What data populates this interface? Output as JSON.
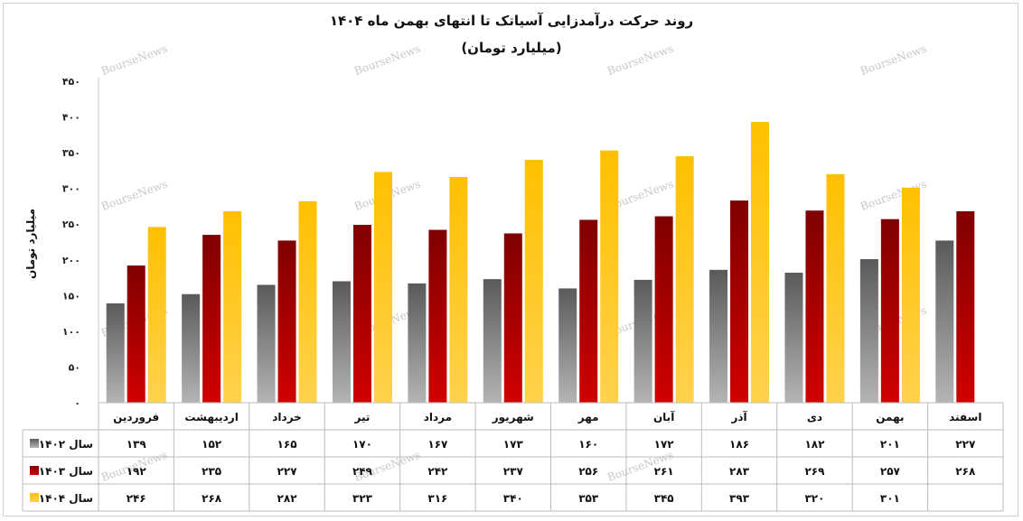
{
  "chart_data": {
    "type": "bar",
    "title": "روند حرکت درآمدزایی آسیاتک تا انتهای بهمن ماه ۱۴۰۴",
    "subtitle": "(میلیارد تومان)",
    "ylabel": "میلیارد تومان",
    "xlabel": "",
    "ylim": [
      0,
      450
    ],
    "yticks": [
      0,
      50,
      100,
      150,
      200,
      250,
      300,
      350,
      400,
      450
    ],
    "ytick_labels": [
      "۰",
      "۵۰",
      "۱۰۰",
      "۱۵۰",
      "۲۰۰",
      "۲۵۰",
      "۳۰۰",
      "۳۵۰",
      "۴۰۰",
      "۴۵۰"
    ],
    "grid": false,
    "legend": "data-table-left",
    "categories": [
      "فروردین",
      "اردیبهشت",
      "خرداد",
      "تیر",
      "مرداد",
      "شهریور",
      "مهر",
      "آبان",
      "آذر",
      "دی",
      "بهمن",
      "اسفند"
    ],
    "series": [
      {
        "name": "سال ۱۴۰۲",
        "color": "#808080",
        "values": [
          139,
          152,
          165,
          170,
          167,
          173,
          160,
          172,
          186,
          182,
          201,
          227
        ],
        "labels": [
          "۱۳۹",
          "۱۵۲",
          "۱۶۵",
          "۱۷۰",
          "۱۶۷",
          "۱۷۳",
          "۱۶۰",
          "۱۷۲",
          "۱۸۶",
          "۱۸۲",
          "۲۰۱",
          "۲۲۷"
        ]
      },
      {
        "name": "سال ۱۴۰۳",
        "color": "#a00000",
        "values": [
          192,
          235,
          227,
          249,
          242,
          237,
          256,
          261,
          283,
          269,
          257,
          268
        ],
        "labels": [
          "۱۹۲",
          "۲۳۵",
          "۲۲۷",
          "۲۴۹",
          "۲۴۲",
          "۲۳۷",
          "۲۵۶",
          "۲۶۱",
          "۲۸۳",
          "۲۶۹",
          "۲۵۷",
          "۲۶۸"
        ]
      },
      {
        "name": "سال ۱۴۰۴",
        "color": "#ffc000",
        "values": [
          246,
          268,
          282,
          323,
          316,
          340,
          353,
          345,
          393,
          320,
          301,
          null
        ],
        "labels": [
          "۲۴۶",
          "۲۶۸",
          "۲۸۲",
          "۳۲۳",
          "۳۱۶",
          "۳۴۰",
          "۳۵۳",
          "۳۴۵",
          "۳۹۳",
          "۳۲۰",
          "۳۰۱",
          ""
        ]
      }
    ],
    "watermark": "BourseNews"
  }
}
